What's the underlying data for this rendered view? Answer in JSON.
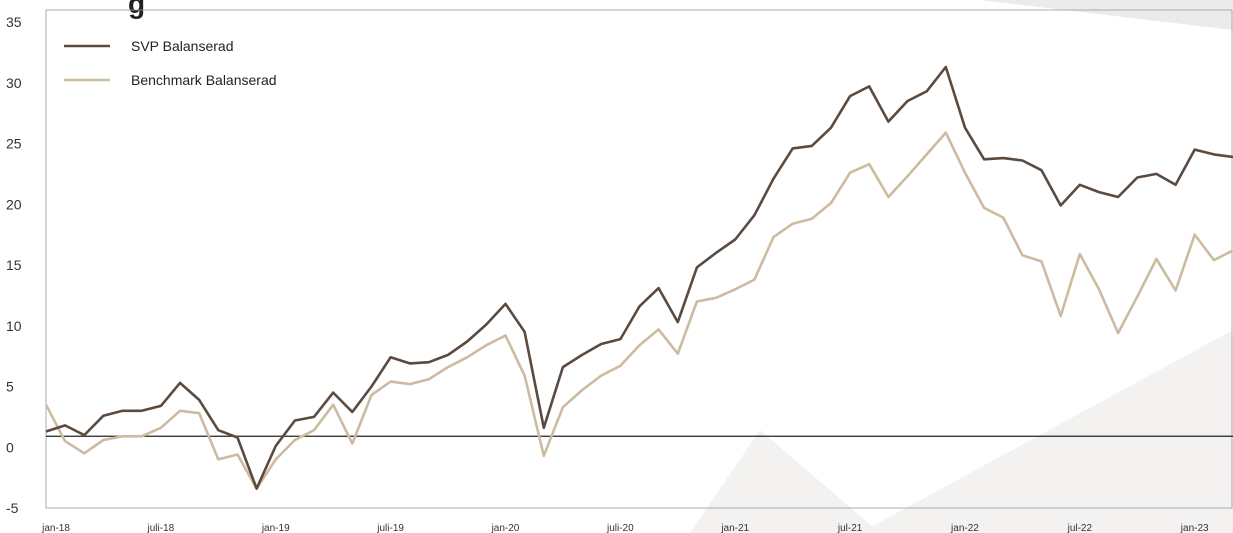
{
  "chart_data": {
    "type": "line",
    "title_fragment": "g",
    "xlabel": "",
    "ylabel": "",
    "ylim": [
      -5,
      35
    ],
    "yticks": [
      -5,
      0,
      5,
      10,
      15,
      20,
      25,
      30,
      35
    ],
    "x_tick_labels": [
      "jan-18",
      "juli-18",
      "jan-19",
      "juli-19",
      "jan-20",
      "juli-20",
      "jan-21",
      "jul-21",
      "jan-22",
      "jul-22",
      "jan-23"
    ],
    "x_tick_month_index": [
      0,
      6,
      12,
      18,
      24,
      30,
      36,
      42,
      48,
      54,
      60
    ],
    "x_period": {
      "first": "jan-18",
      "last": "mar-23",
      "months": 63
    },
    "reference_line_y": 0,
    "grid": false,
    "legend_position": "top-left",
    "series": [
      {
        "name": "SVP Balanserad",
        "color": "#5b4a3f",
        "values": [
          1.3,
          1.8,
          1.0,
          2.6,
          3.0,
          3.0,
          3.4,
          5.3,
          3.9,
          1.4,
          0.8,
          -3.4,
          0.1,
          2.2,
          2.5,
          4.5,
          2.9,
          5.0,
          7.4,
          6.9,
          7.0,
          7.6,
          8.7,
          10.1,
          11.8,
          9.5,
          1.6,
          6.6,
          7.6,
          8.5,
          8.9,
          11.6,
          13.1,
          10.3,
          14.8,
          16.0,
          17.1,
          19.1,
          22.1,
          24.6,
          24.8,
          26.3,
          28.9,
          29.7,
          26.8,
          28.5,
          29.3,
          31.3,
          26.3,
          23.7,
          23.8,
          23.6,
          22.8,
          19.9,
          21.6,
          21.0,
          20.6,
          22.2,
          22.5,
          21.6,
          24.5,
          24.1,
          23.9
        ]
      },
      {
        "name": "Benchmark Balanserad",
        "color": "#cdbba1",
        "values": [
          3.5,
          0.5,
          -0.5,
          0.6,
          0.9,
          0.9,
          1.6,
          3.0,
          2.8,
          -1.0,
          -0.6,
          -3.4,
          -1.0,
          0.6,
          1.4,
          3.5,
          0.3,
          4.3,
          5.4,
          5.2,
          5.6,
          6.6,
          7.4,
          8.4,
          9.2,
          5.9,
          -0.7,
          3.3,
          4.7,
          5.9,
          6.7,
          8.4,
          9.7,
          7.7,
          12.0,
          12.3,
          13.0,
          13.8,
          17.3,
          18.4,
          18.8,
          20.1,
          22.6,
          23.3,
          20.6,
          22.3,
          24.1,
          25.9,
          22.6,
          19.7,
          18.9,
          15.8,
          15.3,
          10.8,
          15.9,
          13.0,
          9.4,
          12.4,
          15.5,
          12.9,
          17.5,
          15.4,
          16.2
        ]
      }
    ]
  }
}
